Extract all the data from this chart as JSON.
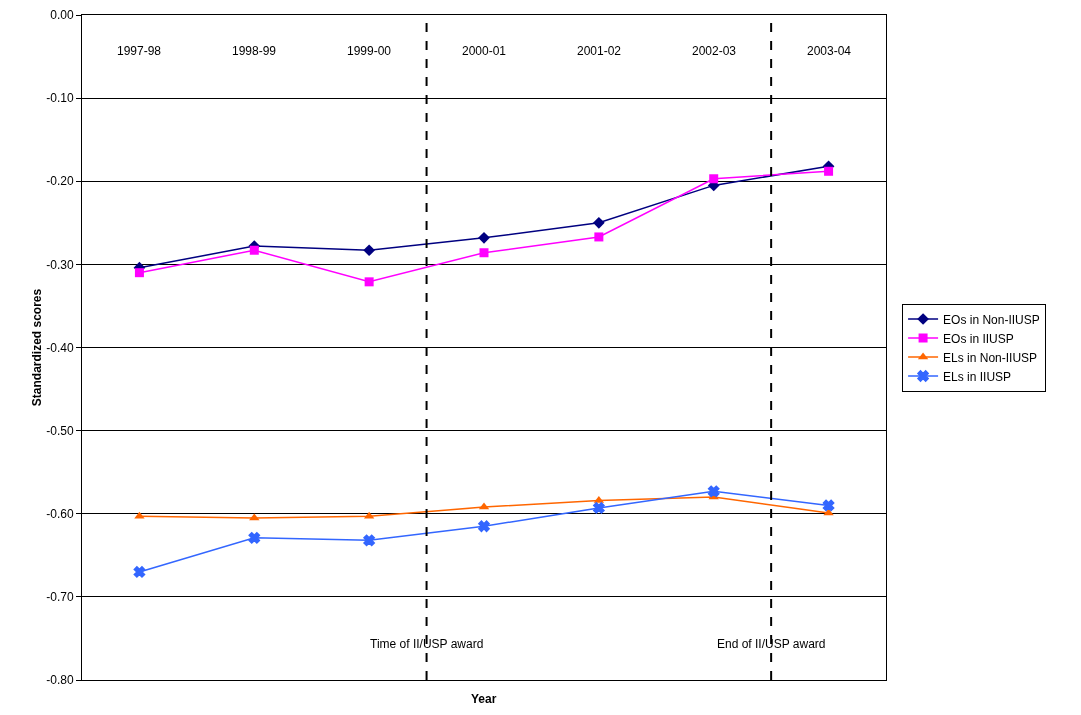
{
  "chart_data": {
    "type": "line",
    "xlabel": "Year",
    "ylabel": "Standardized scores",
    "categories": [
      "1997-98",
      "1998-99",
      "1999-00",
      "2000-01",
      "2001-02",
      "2002-03",
      "2003-04"
    ],
    "series": [
      {
        "name": "EOs in Non-IIUSP",
        "color": "#000080",
        "marker": "diamond",
        "values": [
          -0.304,
          -0.278,
          -0.283,
          -0.268,
          -0.25,
          -0.205,
          -0.182
        ]
      },
      {
        "name": "EOs in IIUSP",
        "color": "#ff00ff",
        "marker": "square",
        "values": [
          -0.31,
          -0.283,
          -0.321,
          -0.286,
          -0.267,
          -0.197,
          -0.188
        ]
      },
      {
        "name": "ELs in Non-IIUSP",
        "color": "#ff6600",
        "marker": "triangle",
        "values": [
          -0.603,
          -0.605,
          -0.603,
          -0.592,
          -0.584,
          -0.58,
          -0.599
        ]
      },
      {
        "name": "ELs in IIUSP",
        "color": "#3366ff",
        "marker": "cross",
        "values": [
          -0.67,
          -0.629,
          -0.632,
          -0.615,
          -0.593,
          -0.573,
          -0.59
        ]
      }
    ],
    "ylim": [
      -0.8,
      0
    ],
    "yticks": [
      {
        "value": -0.8,
        "label": "-0.80"
      },
      {
        "value": -0.7,
        "label": "-0.70"
      },
      {
        "value": -0.6,
        "label": "-0.60"
      },
      {
        "value": -0.5,
        "label": "-0.50"
      },
      {
        "value": -0.4,
        "label": "-0.40"
      },
      {
        "value": -0.3,
        "label": "-0.30"
      },
      {
        "value": -0.2,
        "label": "-0.20"
      },
      {
        "value": -0.1,
        "label": "-0.10"
      },
      {
        "value": 0,
        "label": "0.00"
      }
    ],
    "annotations": [
      "Time of II/USP award",
      "End of II/USP award"
    ],
    "grid": "y",
    "legend": "right",
    "line_style": "solid"
  }
}
